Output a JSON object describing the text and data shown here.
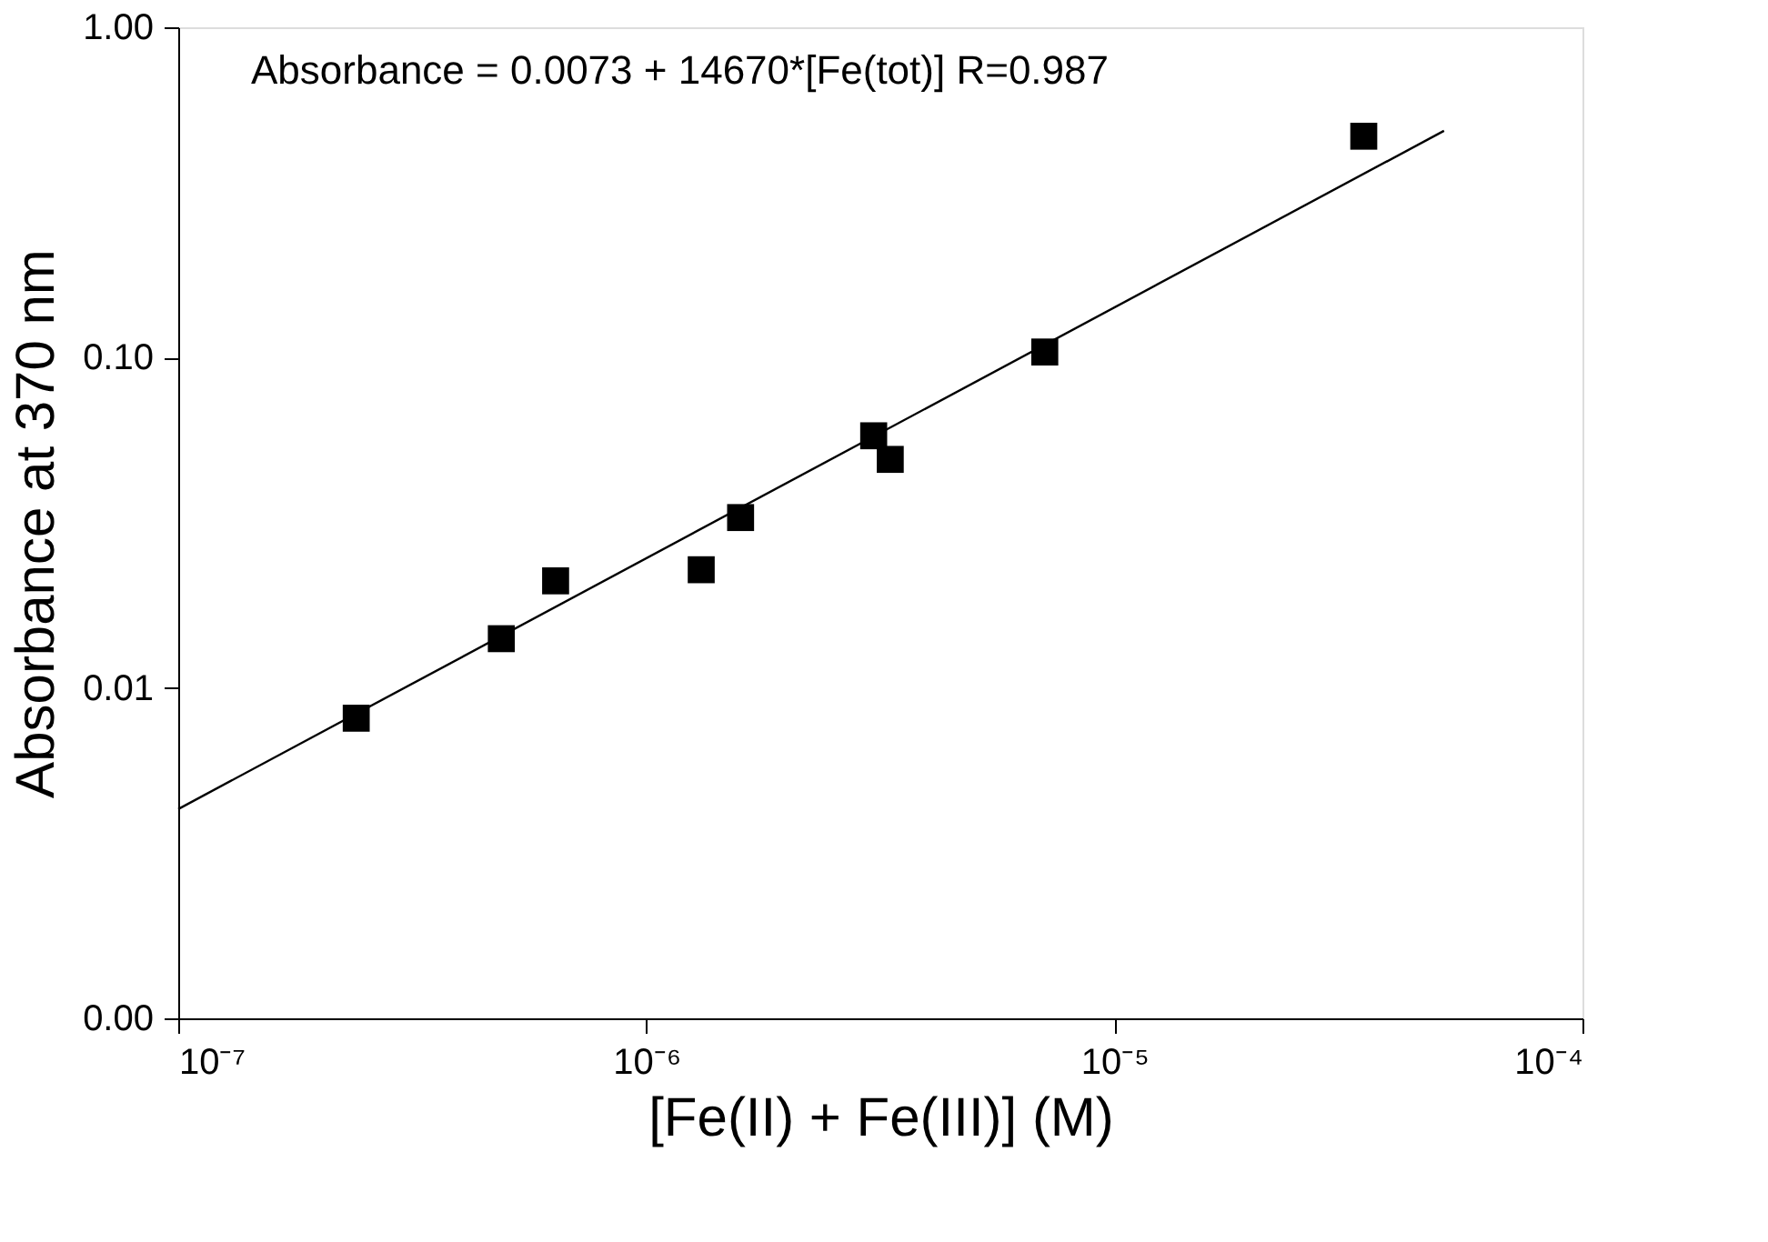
{
  "chart_data": {
    "type": "scatter",
    "xlabel": "[Fe(II) + Fe(III)]  (M)",
    "ylabel": "Absorbance at 370 nm",
    "log": "xy",
    "grid": false,
    "xlim": [
      1e-07,
      0.0001
    ],
    "xticks": [
      {
        "value": 1e-07,
        "label": "10⁻⁷"
      },
      {
        "value": 1e-06,
        "label": "10⁻⁶"
      },
      {
        "value": 1e-05,
        "label": "10⁻⁵"
      },
      {
        "value": 0.0001,
        "label": "10⁻⁴"
      }
    ],
    "ylim": [
      0.001,
      1
    ],
    "yticks": [
      {
        "value": 0.001,
        "label": "0.00"
      },
      {
        "value": 0.01,
        "label": "0.01"
      },
      {
        "value": 0.1,
        "label": "0.10"
      },
      {
        "value": 1,
        "label": "1.00"
      }
    ],
    "annotations": [
      "Absorbance = 0.0073 + 14670*[Fe(tot)]  R=0.987"
    ],
    "series": [
      {
        "marker": "square",
        "color": "#000000",
        "x": [
          2.4e-07,
          4.9e-07,
          6.4e-07,
          1.31e-06,
          1.59e-06,
          3.06e-06,
          3.32e-06,
          7.1e-06,
          3.41e-05
        ],
        "values": [
          0.0081,
          0.0141,
          0.0211,
          0.0228,
          0.0328,
          0.058,
          0.0492,
          0.104,
          0.468
        ]
      },
      {
        "type": "line",
        "marker": "none",
        "color": "#000000",
        "x": [
          1e-07,
          5.06e-05
        ],
        "values": [
          0.0043,
          0.486
        ]
      }
    ]
  }
}
